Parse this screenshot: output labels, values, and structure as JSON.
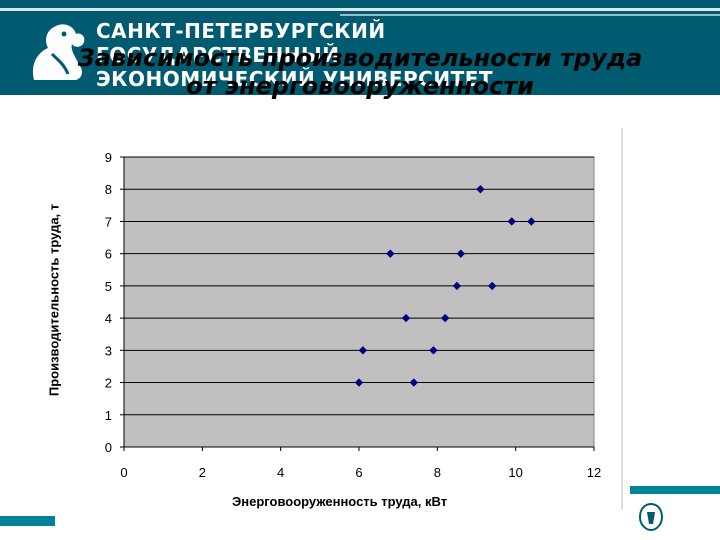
{
  "header": {
    "university_lines": [
      "САНКТ-ПЕТЕРБУРГСКИЙ",
      "ГОСУДАРСТВЕННЫЙ",
      "ЭКОНОМИЧЕСКИЙ УНИВЕРСИТЕТ"
    ],
    "logo_icon": "lion-griffin-logo-icon",
    "band_color": "#005a70"
  },
  "slide": {
    "title_lines": [
      "Зависимость производительности труда",
      "от энерговооруженности"
    ]
  },
  "footer": {
    "emblem_icon": "university-emblem-icon",
    "accent_color": "#00829a"
  },
  "chart_data": {
    "type": "scatter",
    "title": "",
    "xlabel": "Энерговооруженность труда, кВт",
    "ylabel": "Производительность труда, т",
    "xlim": [
      0,
      12
    ],
    "ylim": [
      0,
      9
    ],
    "x_ticks": [
      "0",
      "2",
      "4",
      "6",
      "8",
      "10",
      "12"
    ],
    "y_ticks": [
      "0",
      "1",
      "2",
      "3",
      "4",
      "5",
      "6",
      "7",
      "8",
      "9"
    ],
    "grid": "horizontal",
    "plot_background": "#c0c0c0",
    "marker_color": "#000080",
    "marker": "diamond",
    "points": [
      {
        "x": 6.0,
        "y": 2
      },
      {
        "x": 6.1,
        "y": 3
      },
      {
        "x": 6.8,
        "y": 6
      },
      {
        "x": 7.2,
        "y": 4
      },
      {
        "x": 7.4,
        "y": 2
      },
      {
        "x": 7.9,
        "y": 3
      },
      {
        "x": 8.2,
        "y": 4
      },
      {
        "x": 8.5,
        "y": 5
      },
      {
        "x": 8.6,
        "y": 6
      },
      {
        "x": 9.1,
        "y": 8
      },
      {
        "x": 9.4,
        "y": 5
      },
      {
        "x": 9.9,
        "y": 7
      },
      {
        "x": 10.4,
        "y": 7
      }
    ]
  }
}
